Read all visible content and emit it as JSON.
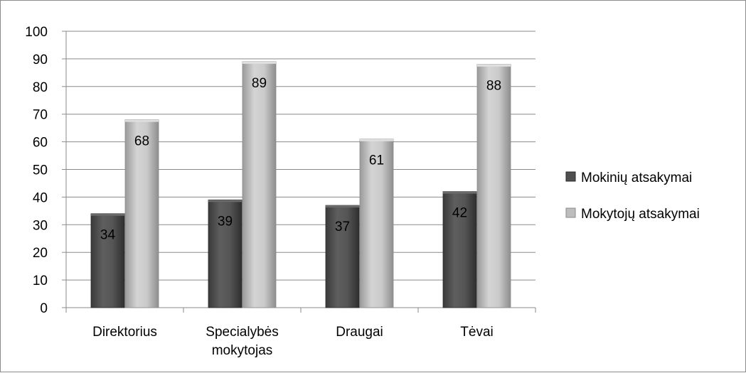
{
  "chart_data": {
    "type": "bar",
    "title": "",
    "xlabel": "",
    "ylabel": "",
    "categories": [
      [
        "Direktorius"
      ],
      [
        "Specialybės",
        "mokytojas"
      ],
      [
        "Draugai"
      ],
      [
        "Tėvai"
      ]
    ],
    "series": [
      {
        "name": "Mokinių atsakymai",
        "values": [
          34,
          39,
          37,
          42
        ],
        "color": "#4f4f4f"
      },
      {
        "name": "Mokytojų atsakymai",
        "values": [
          68,
          89,
          61,
          88
        ],
        "color": "#bdbdbd"
      }
    ],
    "ylim": [
      0,
      100
    ],
    "yticks": [
      0,
      10,
      20,
      30,
      40,
      50,
      60,
      70,
      80,
      90,
      100
    ],
    "grid": true,
    "legend_position": "right"
  }
}
